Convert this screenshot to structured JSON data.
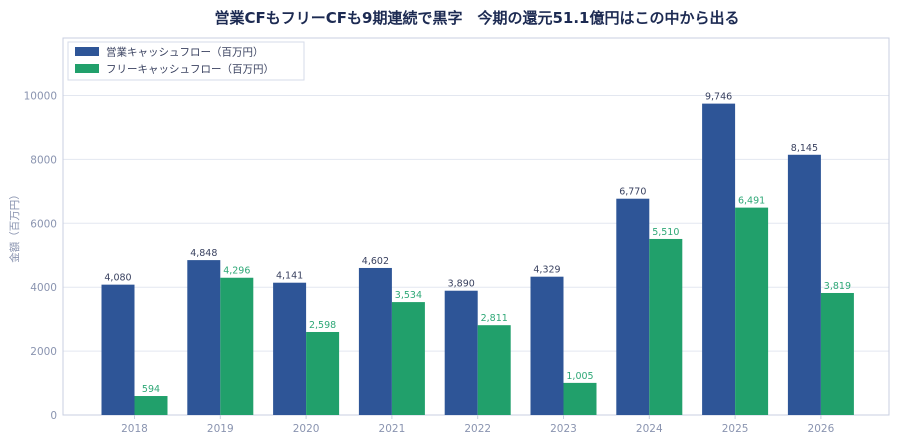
{
  "chart_data": {
    "type": "bar",
    "title": "営業CFもフリーCFも9期連続で黒字　今期の還元51.1億円はこの中から出る",
    "xlabel": "",
    "ylabel": "金額（百万円）",
    "ylim": [
      0,
      11800
    ],
    "yticks": [
      0,
      2000,
      4000,
      6000,
      8000,
      10000
    ],
    "grid": true,
    "legend_position": "top-left",
    "categories": [
      "2018",
      "2019",
      "2020",
      "2021",
      "2022",
      "2023",
      "2024",
      "2025",
      "2026"
    ],
    "series": [
      {
        "name": "営業キャッシュフロー（百万円）",
        "color": "#2e5597",
        "values": [
          4080,
          4848,
          4141,
          4602,
          3890,
          4329,
          6770,
          9746,
          8145
        ],
        "labels": [
          "4,080",
          "4,848",
          "4,141",
          "4,602",
          "3,890",
          "4,329",
          "6,770",
          "9,746",
          "8,145"
        ],
        "label_color": "#3a4260"
      },
      {
        "name": "フリーキャッシュフロー（百万円）",
        "color": "#21a06b",
        "values": [
          594,
          4296,
          2598,
          3534,
          2811,
          1005,
          5510,
          6491,
          3819
        ],
        "labels": [
          "594",
          "4,296",
          "2,598",
          "3,534",
          "2,811",
          "1,005",
          "5,510",
          "6,491",
          "3,819"
        ],
        "label_color": "#2fa877"
      }
    ]
  }
}
